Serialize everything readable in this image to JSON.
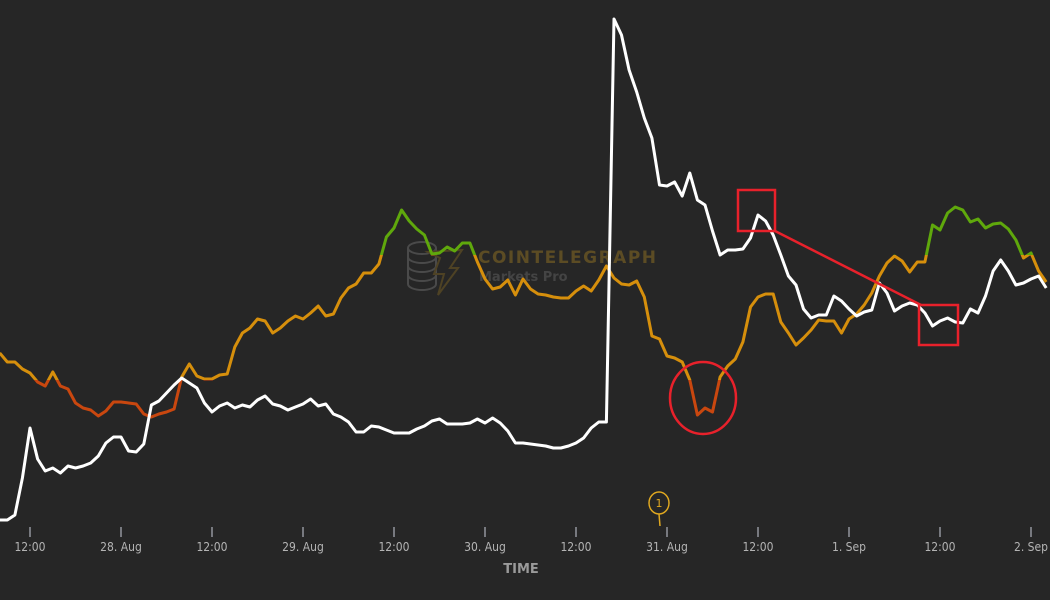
{
  "chart_data": {
    "type": "line",
    "title": "",
    "xlabel": "TIME",
    "ylabel": "",
    "x_start": "27 Aug 08:00",
    "x_interval": "1 hour",
    "ylim": [
      0,
      104
    ],
    "grid": false,
    "legend": "none",
    "x_ticks": [
      "12:00",
      "28. Aug",
      "12:00",
      "29. Aug",
      "12:00",
      "30. Aug",
      "12:00",
      "31. Aug",
      "12:00",
      "1. Sep",
      "12:00",
      "2. Sep"
    ],
    "series": [
      {
        "color": "#ffffff",
        "values": [
          2,
          2,
          3,
          10.4,
          20.4,
          14.2,
          11.8,
          12.4,
          11.4,
          12.8,
          12.4,
          12.8,
          13.4,
          14.8,
          17.4,
          18.6,
          18.6,
          15.8,
          15.6,
          17.2,
          25,
          25.8,
          27.4,
          29,
          30.4,
          29.4,
          28.4,
          25.4,
          23.6,
          24.8,
          25.4,
          24.4,
          25,
          24.6,
          26,
          26.8,
          25.2,
          24.8,
          24,
          24.6,
          25.2,
          26.2,
          24.8,
          25.2,
          23.2,
          22.6,
          21.6,
          19.6,
          19.6,
          20.8,
          20.6,
          20,
          19.4,
          19.4,
          19.4,
          20.2,
          20.8,
          21.8,
          22.2,
          21.2,
          21.2,
          21.2,
          21.4,
          22.2,
          21.4,
          22.4,
          21.4,
          19.8,
          17.4,
          17.4,
          17.2,
          17,
          16.8,
          16.4,
          16.4,
          16.8,
          17.4,
          18.4,
          20.4,
          21.6,
          21.6,
          102.2,
          99,
          92,
          87.6,
          82.4,
          78.4,
          69,
          68.8,
          69.6,
          66.8,
          71.4,
          66,
          65,
          59.8,
          55,
          56,
          56,
          56.2,
          58.4,
          63,
          61.8,
          59,
          55,
          50.8,
          49,
          44.2,
          42.4,
          43,
          43,
          46.8,
          45.8,
          44.2,
          42.8,
          43.6,
          44,
          49.4,
          47.4,
          43.8,
          44.8,
          45.4,
          45,
          43.4,
          40.8,
          41.8,
          42.4,
          41.6,
          41.4,
          44.2,
          43.4,
          46.8,
          51.8,
          54,
          51.8,
          49,
          49.4,
          50.2,
          50.8,
          48.4
        ]
      },
      {
        "color": "#d68f0c",
        "color_low": "#c9470f",
        "color_high": "#5fa80c",
        "low_threshold": 30,
        "high_threshold": 55,
        "values": [
          35.4,
          33.6,
          33.6,
          32.2,
          31.4,
          29.6,
          28.8,
          31.6,
          28.8,
          28.2,
          25.4,
          24.4,
          24,
          22.8,
          23.8,
          25.6,
          25.6,
          25.4,
          25.2,
          23.2,
          22.6,
          23.2,
          23.6,
          24.2,
          30.6,
          33.2,
          30.8,
          30.2,
          30.2,
          31,
          31.2,
          36.6,
          39.4,
          40.4,
          42.2,
          41.8,
          39.4,
          40.4,
          41.8,
          42.8,
          42.2,
          43.4,
          44.8,
          42.8,
          43.2,
          46.4,
          48.4,
          49.2,
          51.4,
          51.4,
          53.2,
          58.6,
          60.4,
          64,
          61.8,
          60.2,
          59,
          55.2,
          55.4,
          56.6,
          55.8,
          57.4,
          57.4,
          53.6,
          50.2,
          48.2,
          48.6,
          50,
          47,
          50.2,
          48.2,
          47.2,
          47,
          46.6,
          46.4,
          46.4,
          47.8,
          48.8,
          47.8,
          50,
          52.8,
          50.4,
          49.2,
          49,
          49.8,
          46.6,
          38.8,
          38.2,
          34.8,
          34.4,
          33.6,
          30,
          23,
          24.4,
          23.6,
          30.6,
          32.8,
          34.2,
          37.6,
          44.6,
          46.6,
          47.2,
          47.2,
          41.6,
          39.4,
          37,
          38.4,
          40,
          42,
          41.8,
          41.8,
          39.4,
          42.2,
          43.2,
          45,
          47.4,
          50.8,
          53.4,
          54.8,
          53.8,
          51.6,
          53.6,
          53.6,
          61,
          60,
          63.4,
          64.6,
          64,
          61.6,
          62.2,
          60.4,
          61.2,
          61.4,
          60.2,
          58,
          54.4,
          55.4,
          51.8,
          49.6
        ]
      }
    ],
    "annotations": {
      "flag_label": "1",
      "highlight_color": "#e8212b"
    }
  },
  "watermark": {
    "brand": "COINTELEGRAPH",
    "product": "Markets Pro"
  }
}
